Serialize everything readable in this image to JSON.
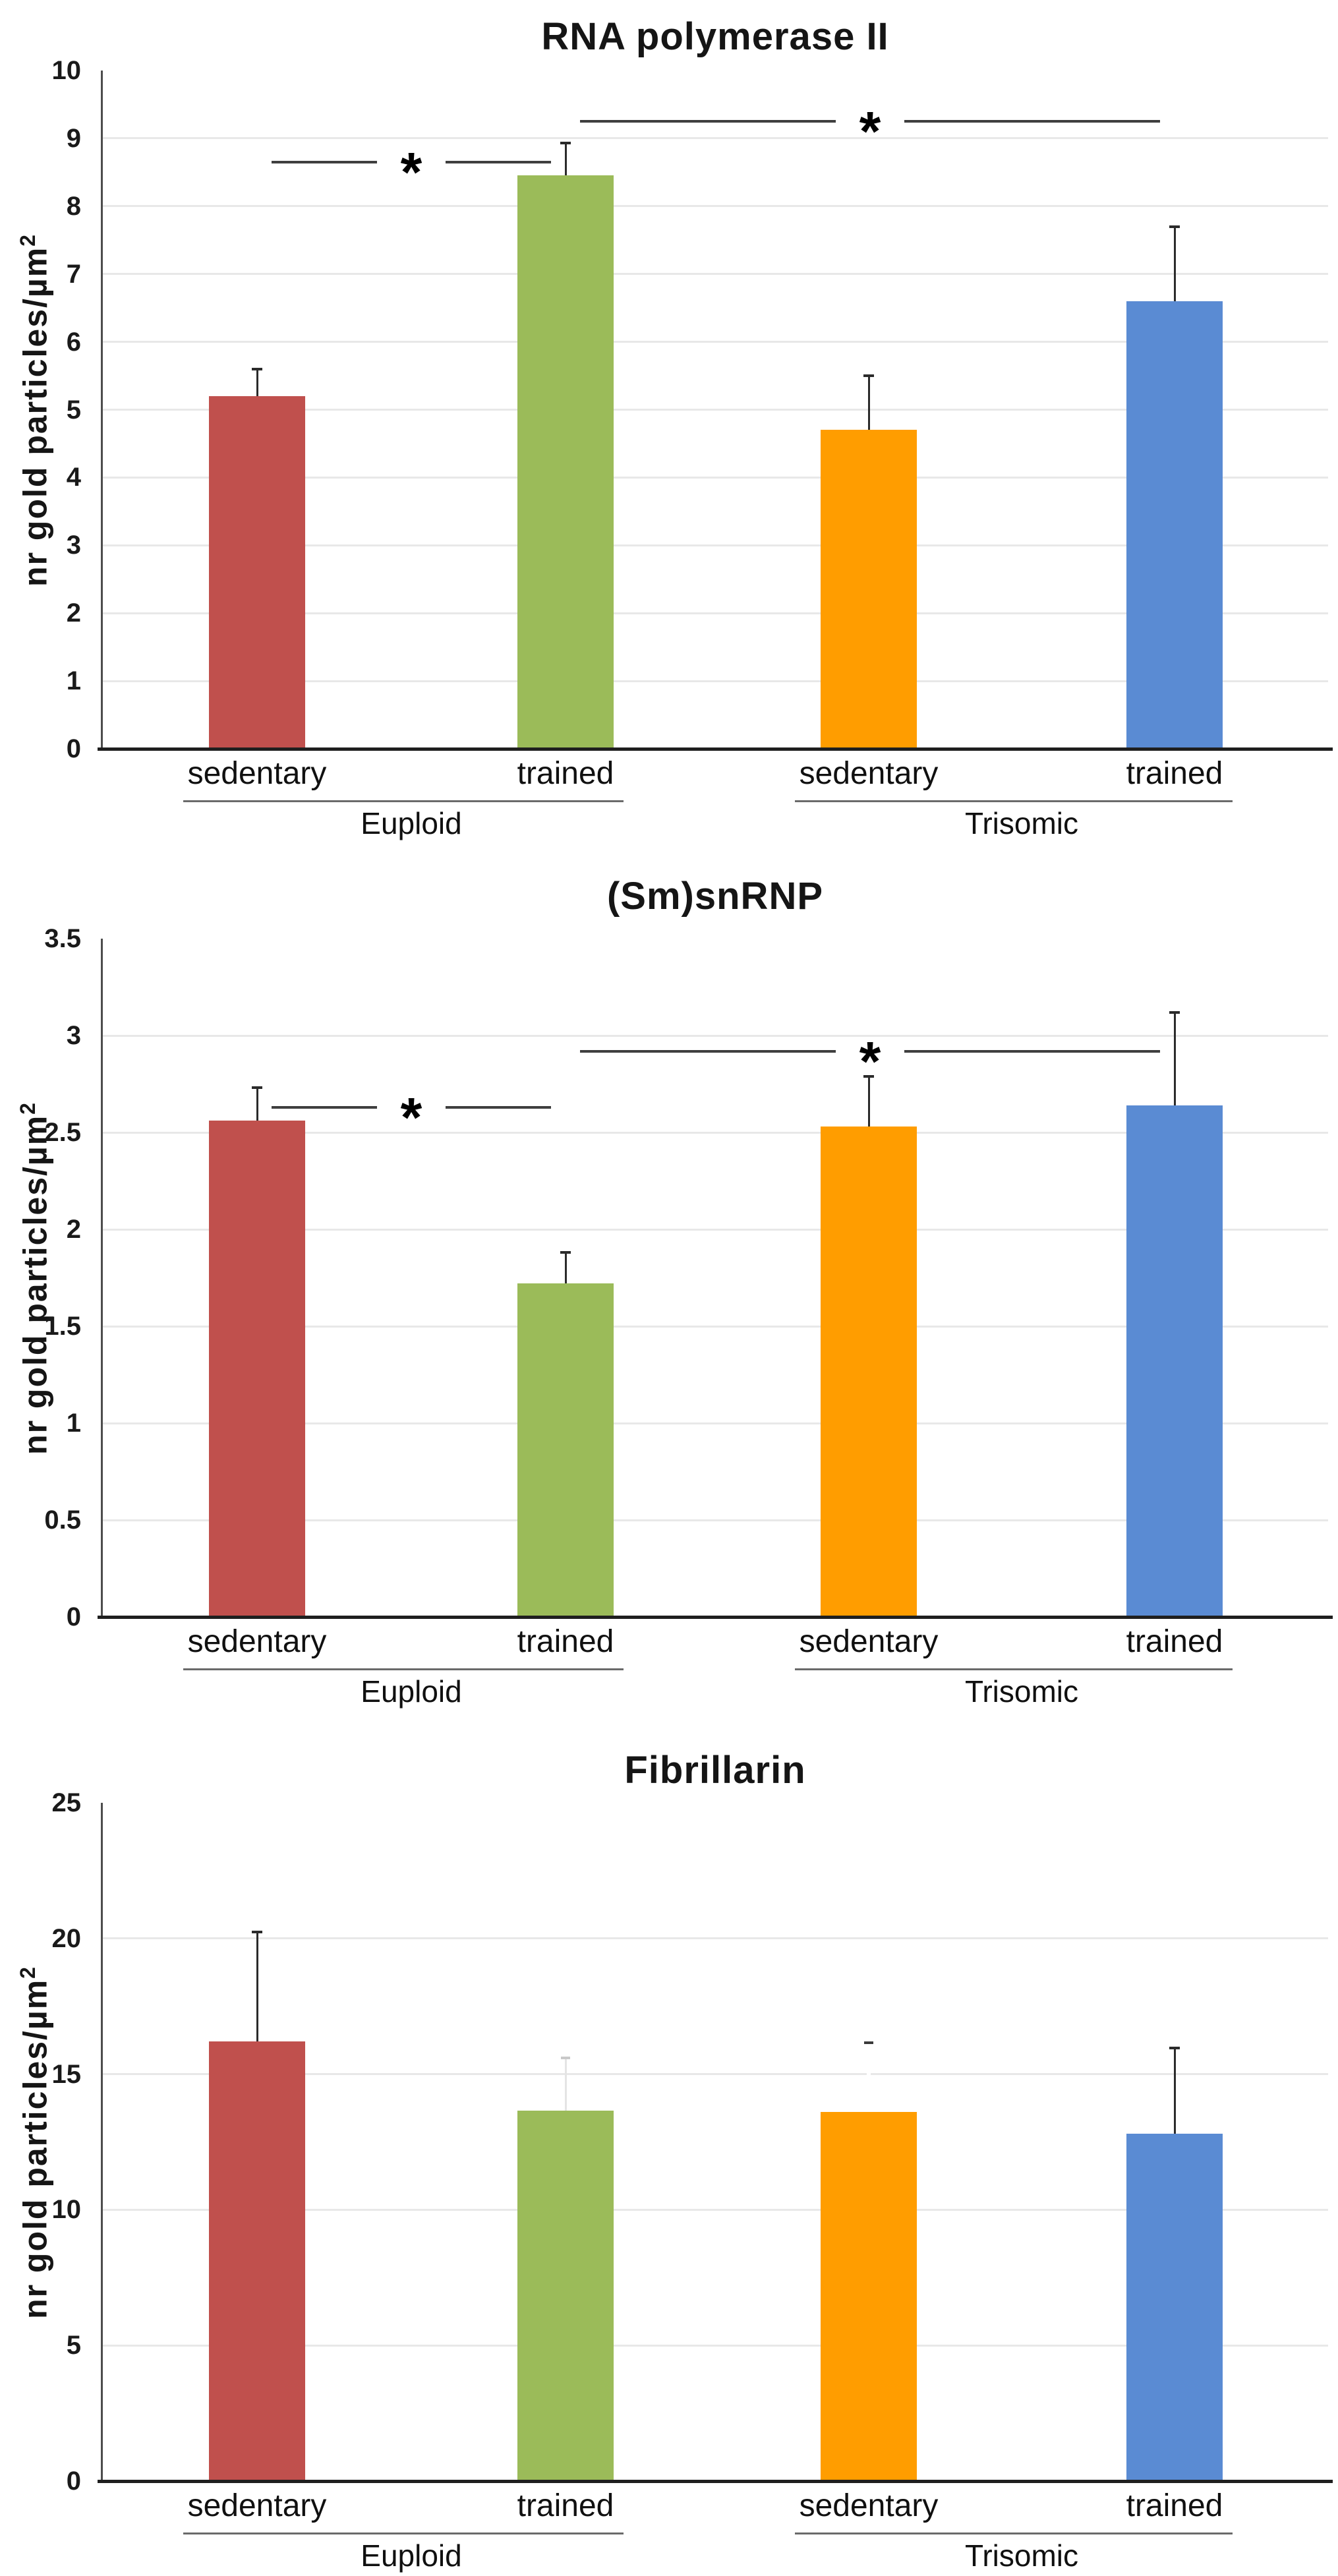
{
  "figure": {
    "background": "#ffffff",
    "grid_color": "#e8e8e8",
    "axis_color": "#1f1f1f",
    "error_bar_color": "#2b2b2b",
    "significance_line_color": "#3f3f3f"
  },
  "chart_data": [
    {
      "type": "bar",
      "title": "RNA polymerase II",
      "ylabel": "nr gold particles/µm",
      "ylabel_sup": "2",
      "ylim": [
        0,
        10
      ],
      "ytick_step": 1,
      "yticks": [
        "0",
        "1",
        "2",
        "3",
        "4",
        "5",
        "6",
        "7",
        "8",
        "9",
        "10"
      ],
      "grid": true,
      "categories": [
        "sedentary",
        "trained",
        "sedentary",
        "trained"
      ],
      "groups": [
        {
          "label": "Euploid",
          "span": [
            0,
            1
          ]
        },
        {
          "label": "Trisomic",
          "span": [
            2,
            3
          ]
        }
      ],
      "series_colors": [
        "#C0504D",
        "#9BBB59",
        "#FF9D00",
        "#5A8BD3"
      ],
      "values": [
        5.2,
        8.45,
        4.7,
        6.6
      ],
      "errors": [
        {
          "top": 5.6
        },
        {
          "top": 8.93
        },
        {
          "top": 5.5
        },
        {
          "top": 7.7
        }
      ],
      "significance": [
        {
          "from": 0,
          "to": 1,
          "y": 8.65,
          "label": "*"
        },
        {
          "from": 1,
          "to": 3,
          "y": 9.25,
          "label": "*"
        }
      ]
    },
    {
      "type": "bar",
      "title": "(Sm)snRNP",
      "ylabel": "nr gold particles/µm",
      "ylabel_sup": "2",
      "ylim": [
        0,
        3.5
      ],
      "ytick_step": 0.5,
      "yticks": [
        "0",
        "0.5",
        "1",
        "1.5",
        "2",
        "2.5",
        "3",
        "3.5"
      ],
      "grid": true,
      "categories": [
        "sedentary",
        "trained",
        "sedentary",
        "trained"
      ],
      "groups": [
        {
          "label": "Euploid",
          "span": [
            0,
            1
          ]
        },
        {
          "label": "Trisomic",
          "span": [
            2,
            3
          ]
        }
      ],
      "series_colors": [
        "#C0504D",
        "#9BBB59",
        "#FF9D00",
        "#5A8BD3"
      ],
      "values": [
        2.56,
        1.72,
        2.53,
        2.64
      ],
      "errors": [
        {
          "top": 2.73
        },
        {
          "top": 1.88
        },
        {
          "top": 2.79
        },
        {
          "top": 3.12
        }
      ],
      "significance": [
        {
          "from": 0,
          "to": 1,
          "y": 2.63,
          "label": "*"
        },
        {
          "from": 1,
          "to": 3,
          "y": 2.92,
          "label": "*"
        }
      ]
    },
    {
      "type": "bar",
      "title": "Fibrillarin",
      "ylabel": "nr gold particles/µm",
      "ylabel_sup": "2",
      "ylim": [
        0,
        25
      ],
      "ytick_step": 5,
      "yticks": [
        "0",
        "5",
        "10",
        "15",
        "20",
        "25"
      ],
      "grid": true,
      "categories": [
        "sedentary",
        "trained",
        "sedentary",
        "trained"
      ],
      "groups": [
        {
          "label": "Euploid",
          "span": [
            0,
            1
          ]
        },
        {
          "label": "Trisomic",
          "span": [
            2,
            3
          ]
        }
      ],
      "series_colors": [
        "#C0504D",
        "#9BBB59",
        "#FF9D00",
        "#5A8BD3"
      ],
      "values": [
        16.2,
        13.65,
        13.6,
        12.8
      ],
      "errors": [
        {
          "top": 20.25
        },
        {
          "top": 15.6,
          "line_color": "#e4e4e4",
          "cap_color": "#c9c9c9",
          "cap_w": 14
        },
        {
          "top": 16.15,
          "line_color": "#ffffff",
          "cap_color": "#3a3a3a",
          "cap_w": 14,
          "line_w": 6
        },
        {
          "top": 15.95
        }
      ],
      "significance": []
    }
  ]
}
